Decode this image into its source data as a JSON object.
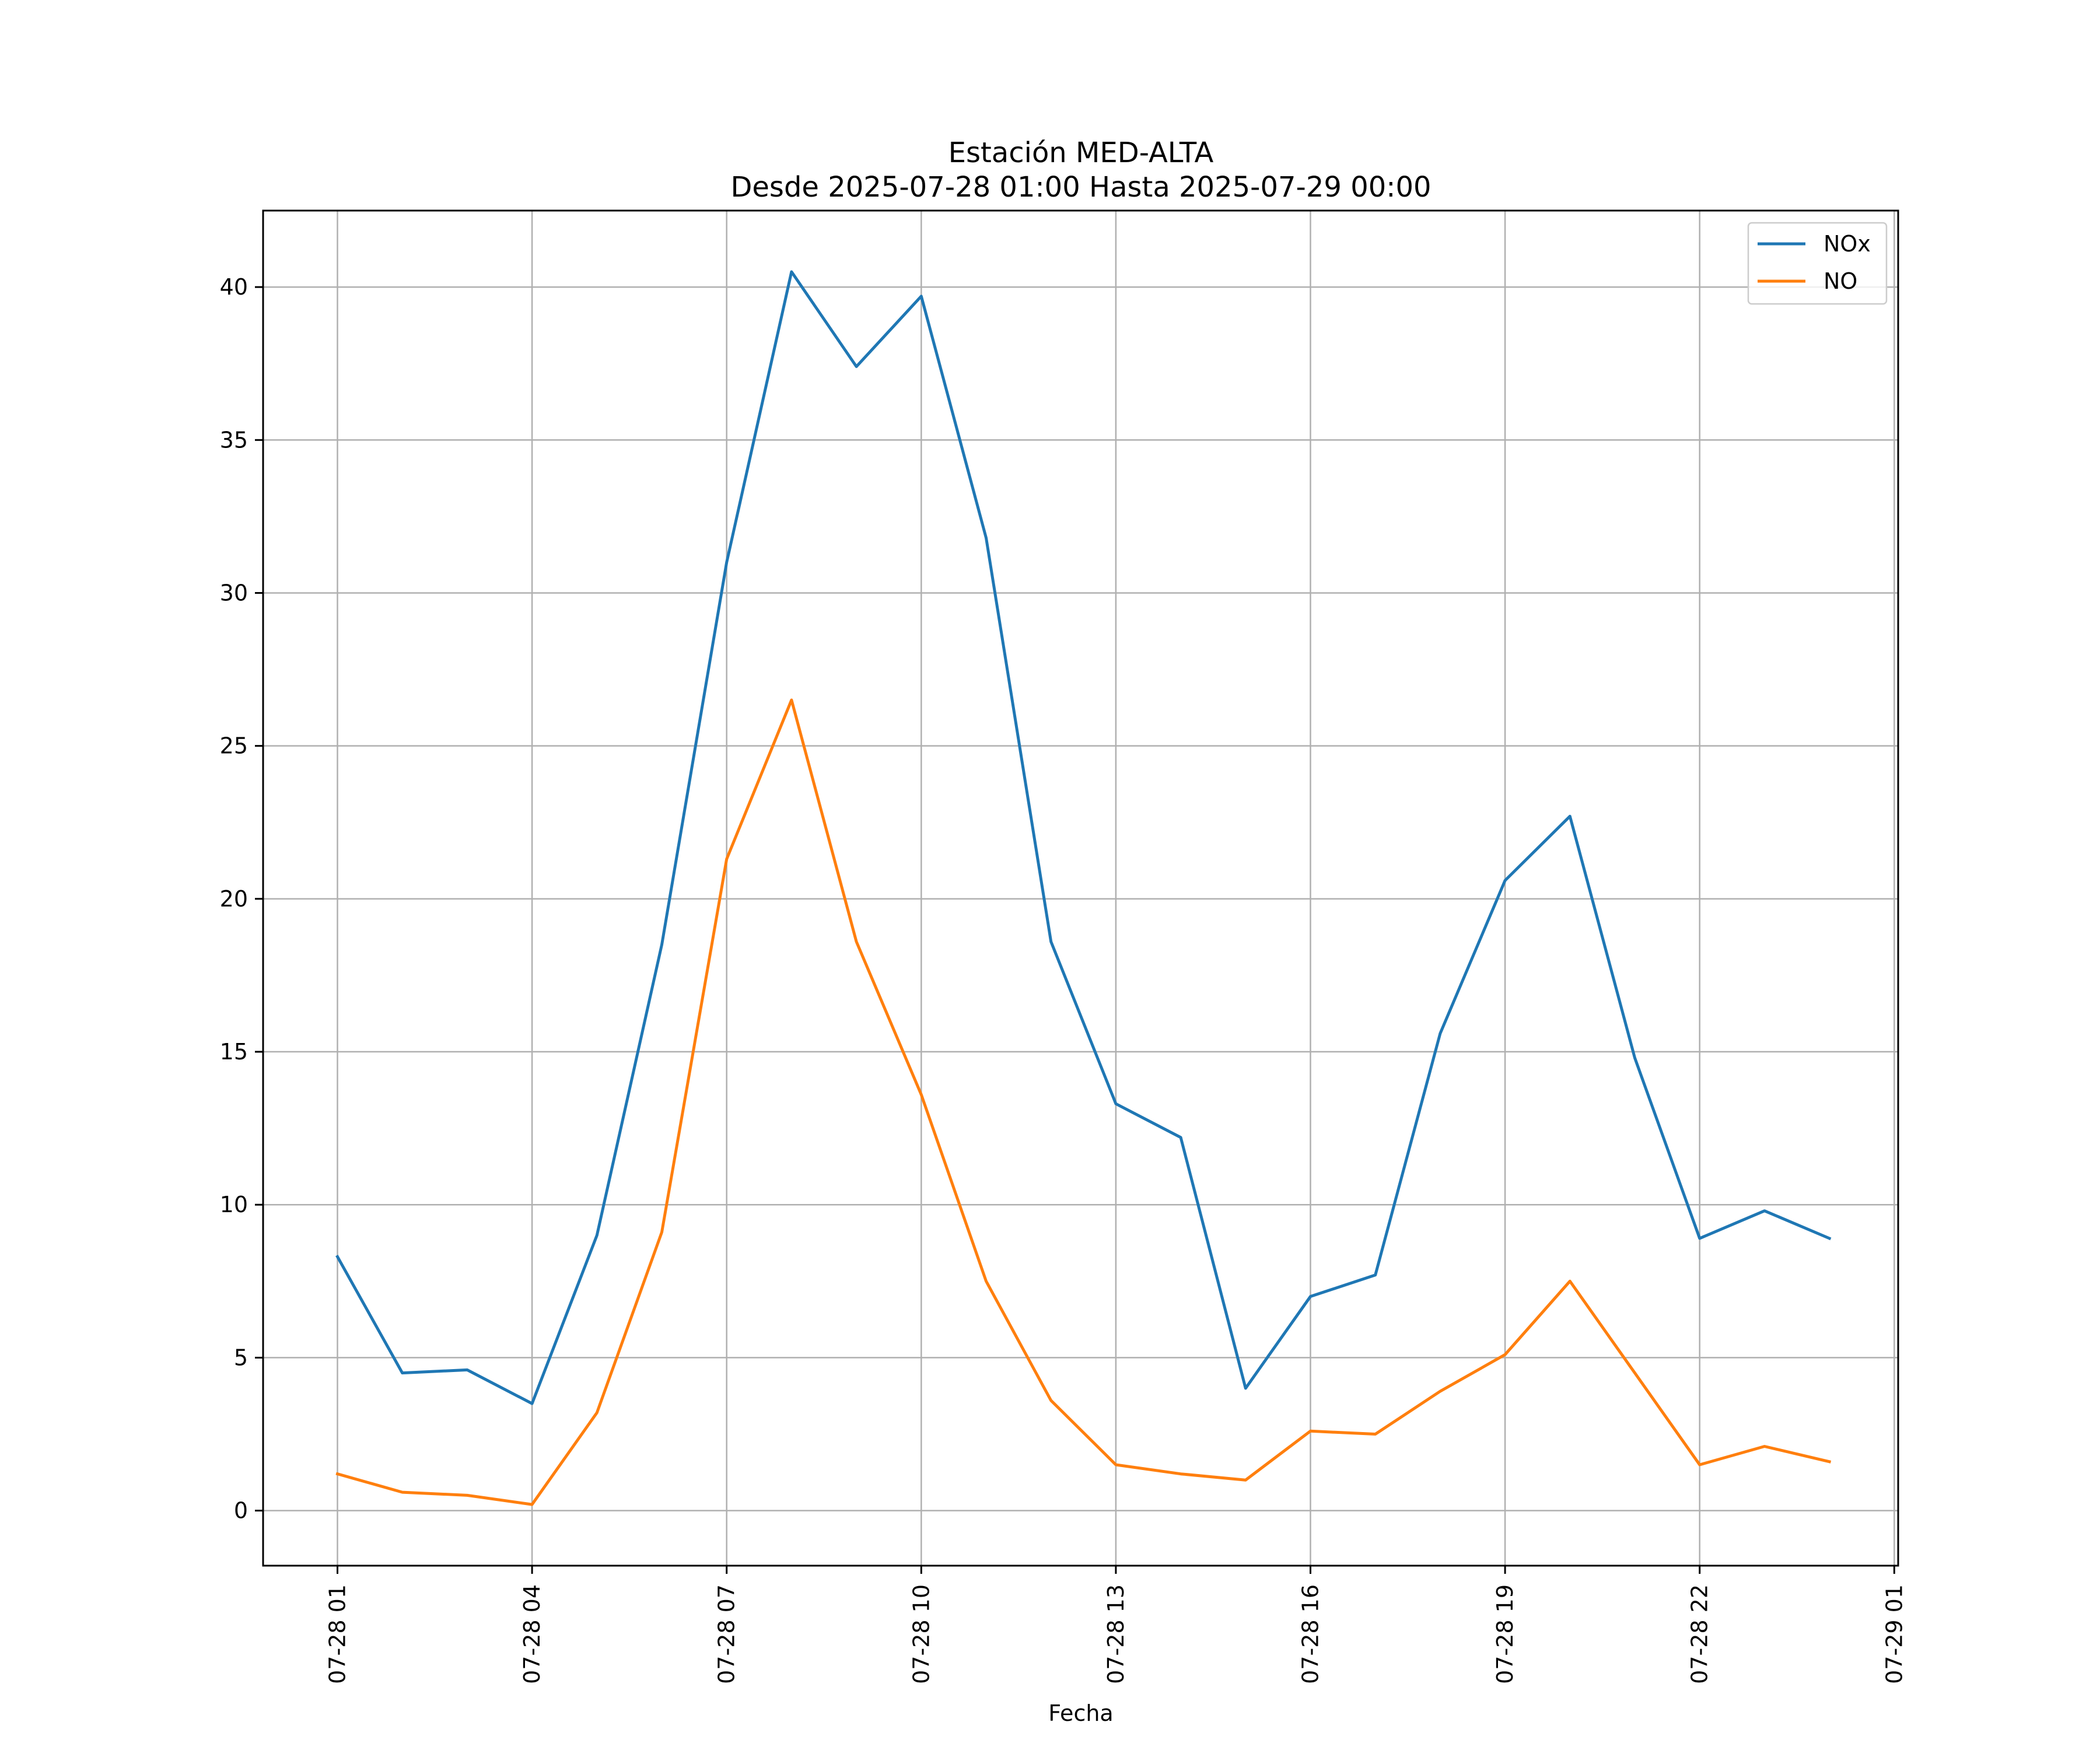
{
  "chart_data": {
    "type": "line",
    "title": "Estación MED-ALTA",
    "subtitle": "Desde 2025-07-28 01:00 Hasta 2025-07-29 00:00",
    "xlabel": "Fecha",
    "ylabel": "",
    "x": [
      "07-28 01",
      "07-28 02",
      "07-28 03",
      "07-28 04",
      "07-28 05",
      "07-28 06",
      "07-28 07",
      "07-28 08",
      "07-28 09",
      "07-28 10",
      "07-28 11",
      "07-28 12",
      "07-28 13",
      "07-28 14",
      "07-28 15",
      "07-28 16",
      "07-28 17",
      "07-28 18",
      "07-28 19",
      "07-28 20",
      "07-28 21",
      "07-28 22",
      "07-28 23",
      "07-29 00"
    ],
    "x_ticks": [
      "07-28 01",
      "07-28 04",
      "07-28 07",
      "07-28 10",
      "07-28 13",
      "07-28 16",
      "07-28 19",
      "07-28 22",
      "07-29 01"
    ],
    "y_ticks": [
      0,
      5,
      10,
      15,
      20,
      25,
      30,
      35,
      40
    ],
    "ylim": [
      -1.8,
      42.5
    ],
    "grid": true,
    "legend_position": "top-right",
    "series": [
      {
        "name": "NOx",
        "color": "#1f77b4",
        "values": [
          8.3,
          4.5,
          4.6,
          3.5,
          9.0,
          18.5,
          31.0,
          40.5,
          37.4,
          39.7,
          31.8,
          18.6,
          13.3,
          12.2,
          4.0,
          7.0,
          7.7,
          15.6,
          20.6,
          22.7,
          14.8,
          8.9,
          9.8,
          8.9
        ]
      },
      {
        "name": "NO",
        "color": "#ff7f0e",
        "values": [
          1.2,
          0.6,
          0.5,
          0.2,
          3.2,
          9.1,
          21.3,
          26.5,
          18.6,
          13.6,
          7.5,
          3.6,
          1.5,
          1.2,
          1.0,
          2.6,
          2.5,
          3.9,
          5.1,
          7.5,
          4.5,
          1.5,
          2.1,
          1.6
        ]
      }
    ]
  }
}
